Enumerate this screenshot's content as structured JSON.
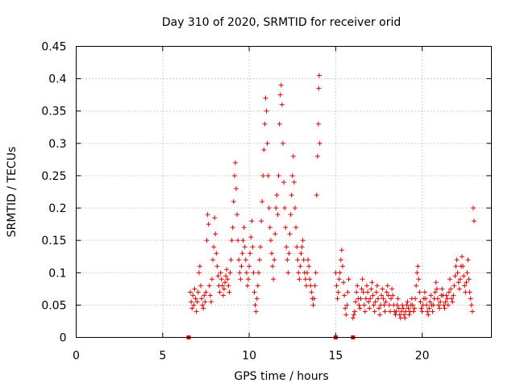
{
  "chart_data": {
    "type": "scatter",
    "title": "Day 310 of 2020, SRMTID for receiver orid",
    "xlabel": "GPS time / hours",
    "ylabel": "SRMTID / TECUs",
    "xlim": [
      0,
      24
    ],
    "ylim": [
      0,
      0.45
    ],
    "x_ticks": [
      "0",
      "5",
      "10",
      "15",
      "20"
    ],
    "y_ticks": [
      "0",
      "0.05",
      "0.1",
      "0.15",
      "0.2",
      "0.25",
      "0.3",
      "0.35",
      "0.4",
      "0.45"
    ],
    "grid": true,
    "colors": {
      "marker": "#e00000"
    },
    "series": [
      {
        "marker": "plus",
        "points": [
          [
            6.6,
            0.07
          ],
          [
            6.65,
            0.055
          ],
          [
            6.7,
            0.045
          ],
          [
            6.75,
            0.065
          ],
          [
            6.8,
            0.05
          ],
          [
            6.85,
            0.075
          ],
          [
            6.9,
            0.06
          ],
          [
            6.95,
            0.04
          ],
          [
            7.0,
            0.055
          ],
          [
            7.05,
            0.07
          ],
          [
            7.1,
            0.1
          ],
          [
            7.15,
            0.11
          ],
          [
            7.2,
            0.08
          ],
          [
            7.25,
            0.06
          ],
          [
            7.3,
            0.05
          ],
          [
            7.35,
            0.045
          ],
          [
            7.4,
            0.065
          ],
          [
            7.45,
            0.055
          ],
          [
            7.5,
            0.07
          ],
          [
            7.55,
            0.15
          ],
          [
            7.6,
            0.19
          ],
          [
            7.65,
            0.175
          ],
          [
            7.7,
            0.08
          ],
          [
            7.75,
            0.065
          ],
          [
            7.8,
            0.055
          ],
          [
            7.85,
            0.09
          ],
          [
            7.9,
            0.12
          ],
          [
            7.95,
            0.14
          ],
          [
            8.0,
            0.185
          ],
          [
            8.05,
            0.16
          ],
          [
            8.1,
            0.13
          ],
          [
            8.15,
            0.11
          ],
          [
            8.2,
            0.095
          ],
          [
            8.25,
            0.08
          ],
          [
            8.3,
            0.07
          ],
          [
            8.35,
            0.1
          ],
          [
            8.4,
            0.09
          ],
          [
            8.45,
            0.08
          ],
          [
            8.5,
            0.065
          ],
          [
            8.55,
            0.075
          ],
          [
            8.6,
            0.085
          ],
          [
            8.65,
            0.095
          ],
          [
            8.7,
            0.105
          ],
          [
            8.75,
            0.09
          ],
          [
            8.8,
            0.08
          ],
          [
            8.85,
            0.07
          ],
          [
            8.9,
            0.1
          ],
          [
            8.95,
            0.12
          ],
          [
            9.0,
            0.15
          ],
          [
            9.05,
            0.17
          ],
          [
            9.1,
            0.21
          ],
          [
            9.15,
            0.25
          ],
          [
            9.2,
            0.27
          ],
          [
            9.25,
            0.23
          ],
          [
            9.3,
            0.19
          ],
          [
            9.35,
            0.15
          ],
          [
            9.4,
            0.12
          ],
          [
            9.45,
            0.1
          ],
          [
            9.5,
            0.09
          ],
          [
            9.55,
            0.11
          ],
          [
            9.6,
            0.13
          ],
          [
            9.65,
            0.15
          ],
          [
            9.7,
            0.17
          ],
          [
            9.75,
            0.14
          ],
          [
            9.8,
            0.12
          ],
          [
            9.85,
            0.1
          ],
          [
            9.9,
            0.08
          ],
          [
            9.95,
            0.09
          ],
          [
            10.0,
            0.11
          ],
          [
            10.05,
            0.13
          ],
          [
            10.1,
            0.155
          ],
          [
            10.15,
            0.18
          ],
          [
            10.2,
            0.14
          ],
          [
            10.25,
            0.1
          ],
          [
            10.3,
            0.07
          ],
          [
            10.35,
            0.05
          ],
          [
            10.4,
            0.04
          ],
          [
            10.45,
            0.06
          ],
          [
            10.5,
            0.08
          ],
          [
            10.55,
            0.1
          ],
          [
            10.6,
            0.12
          ],
          [
            10.65,
            0.14
          ],
          [
            10.7,
            0.18
          ],
          [
            10.75,
            0.21
          ],
          [
            10.8,
            0.25
          ],
          [
            10.85,
            0.29
          ],
          [
            10.9,
            0.33
          ],
          [
            10.95,
            0.37
          ],
          [
            11.0,
            0.35
          ],
          [
            11.05,
            0.3
          ],
          [
            11.1,
            0.25
          ],
          [
            11.15,
            0.2
          ],
          [
            11.2,
            0.17
          ],
          [
            11.25,
            0.15
          ],
          [
            11.3,
            0.13
          ],
          [
            11.35,
            0.11
          ],
          [
            11.4,
            0.09
          ],
          [
            11.45,
            0.12
          ],
          [
            11.5,
            0.16
          ],
          [
            11.55,
            0.2
          ],
          [
            11.6,
            0.22
          ],
          [
            11.65,
            0.19
          ],
          [
            11.7,
            0.25
          ],
          [
            11.75,
            0.33
          ],
          [
            11.8,
            0.375
          ],
          [
            11.85,
            0.39
          ],
          [
            11.9,
            0.36
          ],
          [
            11.95,
            0.3
          ],
          [
            12.0,
            0.24
          ],
          [
            12.05,
            0.2
          ],
          [
            12.1,
            0.17
          ],
          [
            12.15,
            0.14
          ],
          [
            12.2,
            0.12
          ],
          [
            12.25,
            0.1
          ],
          [
            12.3,
            0.13
          ],
          [
            12.35,
            0.16
          ],
          [
            12.4,
            0.19
          ],
          [
            12.45,
            0.22
          ],
          [
            12.5,
            0.25
          ],
          [
            12.55,
            0.28
          ],
          [
            12.6,
            0.24
          ],
          [
            12.65,
            0.2
          ],
          [
            12.7,
            0.17
          ],
          [
            12.75,
            0.14
          ],
          [
            12.8,
            0.12
          ],
          [
            12.85,
            0.1
          ],
          [
            12.9,
            0.09
          ],
          [
            12.95,
            0.11
          ],
          [
            13.0,
            0.13
          ],
          [
            13.05,
            0.14
          ],
          [
            13.1,
            0.15
          ],
          [
            13.15,
            0.12
          ],
          [
            13.2,
            0.1
          ],
          [
            13.25,
            0.09
          ],
          [
            13.3,
            0.08
          ],
          [
            13.35,
            0.1
          ],
          [
            13.4,
            0.12
          ],
          [
            13.45,
            0.11
          ],
          [
            13.5,
            0.09
          ],
          [
            13.55,
            0.08
          ],
          [
            13.6,
            0.07
          ],
          [
            13.65,
            0.06
          ],
          [
            13.7,
            0.05
          ],
          [
            13.75,
            0.06
          ],
          [
            13.8,
            0.08
          ],
          [
            13.85,
            0.1
          ],
          [
            13.9,
            0.22
          ],
          [
            13.95,
            0.28
          ],
          [
            14.0,
            0.33
          ],
          [
            14.02,
            0.385
          ],
          [
            14.05,
            0.405
          ],
          [
            14.08,
            0.3
          ],
          [
            15.0,
            0.1
          ],
          [
            15.05,
            0.08
          ],
          [
            15.1,
            0.06
          ],
          [
            15.15,
            0.07
          ],
          [
            15.2,
            0.09
          ],
          [
            15.25,
            0.1
          ],
          [
            15.3,
            0.12
          ],
          [
            15.35,
            0.135
          ],
          [
            15.4,
            0.11
          ],
          [
            15.45,
            0.085
          ],
          [
            15.5,
            0.065
          ],
          [
            15.55,
            0.045
          ],
          [
            15.6,
            0.035
          ],
          [
            15.65,
            0.05
          ],
          [
            15.7,
            0.07
          ],
          [
            15.75,
            0.09
          ],
          [
            16.0,
            0.03
          ],
          [
            16.05,
            0.035
          ],
          [
            16.1,
            0.04
          ],
          [
            16.15,
            0.055
          ],
          [
            16.2,
            0.07
          ],
          [
            16.25,
            0.08
          ],
          [
            16.3,
            0.06
          ],
          [
            16.35,
            0.05
          ],
          [
            16.4,
            0.045
          ],
          [
            16.45,
            0.06
          ],
          [
            16.5,
            0.075
          ],
          [
            16.55,
            0.09
          ],
          [
            16.6,
            0.07
          ],
          [
            16.65,
            0.05
          ],
          [
            16.7,
            0.04
          ],
          [
            16.75,
            0.06
          ],
          [
            16.8,
            0.08
          ],
          [
            16.85,
            0.07
          ],
          [
            16.9,
            0.055
          ],
          [
            16.95,
            0.045
          ],
          [
            17.0,
            0.06
          ],
          [
            17.05,
            0.075
          ],
          [
            17.1,
            0.085
          ],
          [
            17.15,
            0.065
          ],
          [
            17.2,
            0.05
          ],
          [
            17.25,
            0.04
          ],
          [
            17.3,
            0.055
          ],
          [
            17.35,
            0.07
          ],
          [
            17.4,
            0.08
          ],
          [
            17.45,
            0.06
          ],
          [
            17.5,
            0.045
          ],
          [
            17.55,
            0.035
          ],
          [
            17.6,
            0.05
          ],
          [
            17.65,
            0.065
          ],
          [
            17.7,
            0.075
          ],
          [
            17.75,
            0.06
          ],
          [
            17.8,
            0.05
          ],
          [
            17.85,
            0.04
          ],
          [
            17.9,
            0.055
          ],
          [
            17.95,
            0.07
          ],
          [
            18.0,
            0.08
          ],
          [
            18.05,
            0.065
          ],
          [
            18.1,
            0.05
          ],
          [
            18.15,
            0.04
          ],
          [
            18.2,
            0.06
          ],
          [
            18.25,
            0.075
          ],
          [
            18.3,
            0.065
          ],
          [
            18.35,
            0.05
          ],
          [
            18.4,
            0.04
          ],
          [
            18.45,
            0.035
          ],
          [
            18.5,
            0.04
          ],
          [
            18.55,
            0.05
          ],
          [
            18.6,
            0.06
          ],
          [
            18.65,
            0.045
          ],
          [
            18.7,
            0.035
          ],
          [
            18.75,
            0.03
          ],
          [
            18.8,
            0.04
          ],
          [
            18.85,
            0.05
          ],
          [
            18.9,
            0.045
          ],
          [
            18.95,
            0.035
          ],
          [
            19.0,
            0.03
          ],
          [
            19.05,
            0.04
          ],
          [
            19.1,
            0.05
          ],
          [
            19.15,
            0.055
          ],
          [
            19.2,
            0.045
          ],
          [
            19.25,
            0.035
          ],
          [
            19.3,
            0.04
          ],
          [
            19.35,
            0.05
          ],
          [
            19.4,
            0.06
          ],
          [
            19.45,
            0.05
          ],
          [
            19.5,
            0.04
          ],
          [
            19.55,
            0.045
          ],
          [
            19.6,
            0.06
          ],
          [
            19.65,
            0.08
          ],
          [
            19.7,
            0.1
          ],
          [
            19.75,
            0.11
          ],
          [
            19.8,
            0.09
          ],
          [
            19.85,
            0.07
          ],
          [
            19.9,
            0.055
          ],
          [
            19.95,
            0.045
          ],
          [
            20.0,
            0.04
          ],
          [
            20.05,
            0.05
          ],
          [
            20.1,
            0.06
          ],
          [
            20.15,
            0.07
          ],
          [
            20.2,
            0.06
          ],
          [
            20.25,
            0.05
          ],
          [
            20.3,
            0.04
          ],
          [
            20.35,
            0.035
          ],
          [
            20.4,
            0.045
          ],
          [
            20.45,
            0.055
          ],
          [
            20.5,
            0.065
          ],
          [
            20.55,
            0.05
          ],
          [
            20.6,
            0.04
          ],
          [
            20.65,
            0.05
          ],
          [
            20.7,
            0.06
          ],
          [
            20.75,
            0.07
          ],
          [
            20.8,
            0.085
          ],
          [
            20.85,
            0.075
          ],
          [
            20.9,
            0.06
          ],
          [
            20.95,
            0.05
          ],
          [
            21.0,
            0.045
          ],
          [
            21.05,
            0.055
          ],
          [
            21.1,
            0.065
          ],
          [
            21.15,
            0.075
          ],
          [
            21.2,
            0.065
          ],
          [
            21.25,
            0.05
          ],
          [
            21.3,
            0.045
          ],
          [
            21.35,
            0.055
          ],
          [
            21.4,
            0.065
          ],
          [
            21.45,
            0.06
          ],
          [
            21.5,
            0.05
          ],
          [
            21.55,
            0.07
          ],
          [
            21.6,
            0.09
          ],
          [
            21.65,
            0.075
          ],
          [
            21.7,
            0.06
          ],
          [
            21.75,
            0.055
          ],
          [
            21.8,
            0.065
          ],
          [
            21.85,
            0.08
          ],
          [
            21.9,
            0.095
          ],
          [
            21.95,
            0.11
          ],
          [
            22.0,
            0.12
          ],
          [
            22.05,
            0.1
          ],
          [
            22.1,
            0.085
          ],
          [
            22.15,
            0.075
          ],
          [
            22.2,
            0.09
          ],
          [
            22.25,
            0.11
          ],
          [
            22.3,
            0.125
          ],
          [
            22.35,
            0.11
          ],
          [
            22.4,
            0.095
          ],
          [
            22.45,
            0.08
          ],
          [
            22.5,
            0.07
          ],
          [
            22.55,
            0.085
          ],
          [
            22.6,
            0.1
          ],
          [
            22.65,
            0.12
          ],
          [
            22.7,
            0.09
          ],
          [
            22.75,
            0.07
          ],
          [
            22.8,
            0.06
          ],
          [
            22.85,
            0.05
          ],
          [
            22.9,
            0.04
          ],
          [
            22.95,
            0.2
          ],
          [
            23.0,
            0.18
          ]
        ]
      }
    ],
    "zero_markers_x": [
      6.5,
      15.0,
      16.0
    ]
  }
}
